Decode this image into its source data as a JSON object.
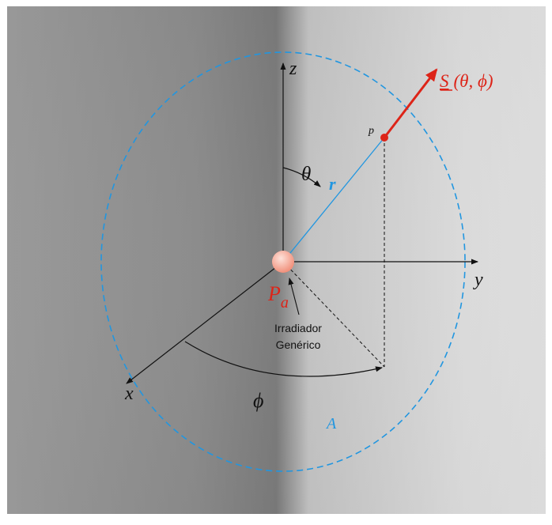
{
  "labels": {
    "z": "z",
    "y": "y",
    "x": "x",
    "theta": "θ",
    "phi": "ϕ",
    "r": "r",
    "p": "p",
    "Pa_main": "P",
    "Pa_sub": "a",
    "S_symbol": "S",
    "S_args": "(θ, ϕ)",
    "A": "A",
    "irradiador_line1": "Irradiador",
    "irradiador_line2": "Genérico"
  },
  "colors": {
    "axis": "#111111",
    "sphere": "#2196e0",
    "radius": "#2196e0",
    "vector": "#dd2418",
    "label_red": "#dd2418",
    "label_blue": "#2196e0",
    "source_fill": "#f6a595",
    "point_fill": "#dd2418"
  }
}
